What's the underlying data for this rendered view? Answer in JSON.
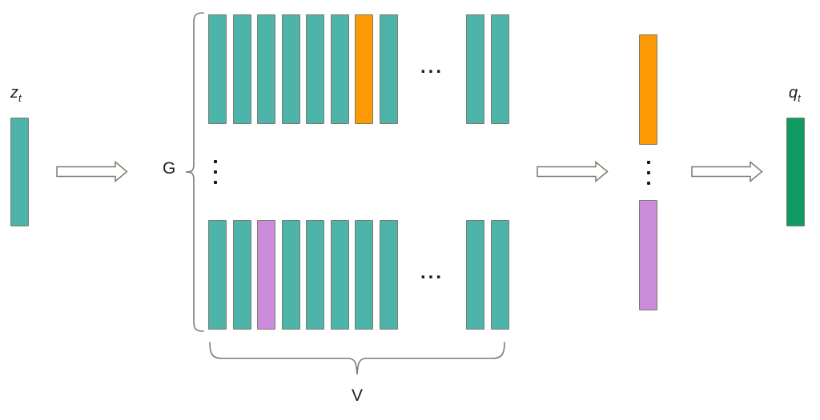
{
  "colors": {
    "teal": "#4db4aa",
    "orange": "#fb9a04",
    "purple": "#ca8cdb",
    "green": "#0f9b62",
    "outline": "#7e7a6d",
    "text": "#1d1d1b",
    "dots": "#16161e",
    "background": "#ffffff"
  },
  "labels": {
    "input_base": "z",
    "input_sub": "t",
    "num_groups": "G",
    "codebook_size": "V",
    "output_base": "q",
    "output_sub": "t",
    "ellipsis": "..."
  },
  "icons": {
    "vertical_ellipsis": "three-vertical-dots",
    "arrow": "right-block-arrow",
    "group_brace": "left-curly-brace",
    "codebook_brace": "bottom-curly-brace"
  },
  "input_vector": {
    "color": "teal"
  },
  "output_vector": {
    "color": "green"
  },
  "codebook": {
    "rows": [
      {
        "main": [
          "teal",
          "teal",
          "teal",
          "teal",
          "teal",
          "teal",
          "orange",
          "teal"
        ],
        "tail": [
          "teal",
          "teal"
        ]
      },
      {
        "main": [
          "teal",
          "teal",
          "purple",
          "teal",
          "teal",
          "teal",
          "teal",
          "teal"
        ],
        "tail": [
          "teal",
          "teal"
        ]
      }
    ]
  },
  "selected_entries": {
    "top": "orange",
    "bottom": "purple"
  }
}
